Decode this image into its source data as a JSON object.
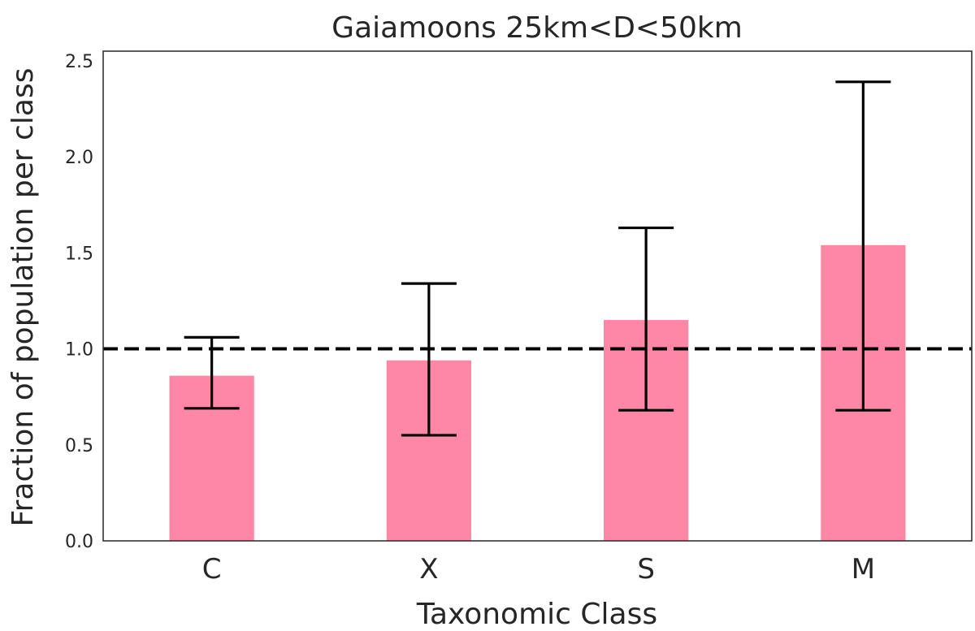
{
  "chart_data": {
    "type": "bar",
    "title": "Gaiamoons 25km<D<50km",
    "xlabel": "Taxonomic Class",
    "ylabel": "Fraction of population per class",
    "categories": [
      "C",
      "X",
      "S",
      "M"
    ],
    "values": [
      0.86,
      0.94,
      1.15,
      1.54
    ],
    "error_low": [
      0.69,
      0.55,
      0.68,
      0.68
    ],
    "error_high": [
      1.06,
      1.34,
      1.63,
      2.39
    ],
    "ylim": [
      0,
      2.55
    ],
    "yticks": [
      "0.0",
      "0.5",
      "1.0",
      "1.5",
      "2.0",
      "2.5"
    ],
    "reference_line": 1.0,
    "grid": false,
    "bar_color": "#ff87a6",
    "errorbar_color": "#000000",
    "reference_line_color": "#000000"
  }
}
